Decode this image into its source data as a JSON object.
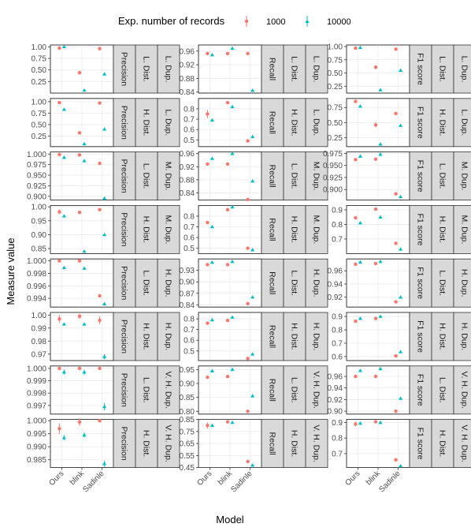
{
  "chart_data": {
    "type": "scatter",
    "title": "",
    "xlabel": "Model",
    "ylabel": "Measure value",
    "legend": {
      "title": "Exp. number of records",
      "placement": "top",
      "entries": [
        {
          "name": "1000",
          "color": "#F8766D",
          "marker": "circle"
        },
        {
          "name": "10000",
          "color": "#00BFC4",
          "marker": "triangle"
        }
      ]
    },
    "categories": [
      "Ours",
      "blink",
      "Sadinle"
    ],
    "grid": true,
    "facets": [
      {
        "metric": "Precision",
        "dist": "L. Dist.",
        "dup": "L. Dup.",
        "ylim": [
          0.0,
          1.04
        ],
        "yticks": [
          "1.00",
          "0.75",
          "0.50",
          "0.25"
        ],
        "series": [
          {
            "name": "1000",
            "values": [
              0.97,
              0.44,
              0.96
            ],
            "err": [
              0.01,
              0.04,
              0.03
            ]
          },
          {
            "name": "10000",
            "values": [
              1.0,
              0.06,
              0.41
            ],
            "err": [
              0.01,
              0.0,
              0.0
            ]
          }
        ]
      },
      {
        "metric": "Recall",
        "dist": "L. Dist.",
        "dup": "L. Dup.",
        "ylim": [
          0.837,
          0.978
        ],
        "yticks": [
          "0.96",
          "0.92",
          "0.88",
          "0.84"
        ],
        "series": [
          {
            "name": "1000",
            "values": [
              0.953,
              0.953,
              0.953
            ],
            "err": [
              0.002,
              0.001,
              0.0
            ]
          },
          {
            "name": "10000",
            "values": [
              0.949,
              0.968,
              0.845
            ],
            "err": [
              0.004,
              0.0,
              0.0
            ]
          }
        ]
      },
      {
        "metric": "F1 score",
        "dist": "L. Dist.",
        "dup": "L. Dup.",
        "ylim": [
          0.12,
          1.03
        ],
        "yticks": [
          "1.00",
          "0.75",
          "0.50",
          "0.25"
        ],
        "series": [
          {
            "name": "1000",
            "values": [
              0.97,
              0.61,
              0.95
            ],
            "err": [
              0.01,
              0.04,
              0.0
            ]
          },
          {
            "name": "10000",
            "values": [
              0.98,
              0.18,
              0.55
            ],
            "err": [
              0.0,
              0.0,
              0.0
            ]
          }
        ]
      },
      {
        "metric": "Precision",
        "dist": "H. Dist.",
        "dup": "L. Dup.",
        "ylim": [
          0.02,
          1.07
        ],
        "yticks": [
          "1.00",
          "0.75",
          "0.50",
          "0.25"
        ],
        "series": [
          {
            "name": "1000",
            "values": [
              0.98,
              0.32,
              0.97
            ],
            "err": [
              0.0,
              0.0,
              0.0
            ]
          },
          {
            "name": "10000",
            "values": [
              0.83,
              0.08,
              0.4
            ],
            "err": [
              0.0,
              0.0,
              0.0
            ]
          }
        ]
      },
      {
        "metric": "Recall",
        "dist": "H. Dist.",
        "dup": "L. Dup.",
        "ylim": [
          0.435,
          0.9
        ],
        "yticks": [
          "0.8",
          "0.7",
          "0.6",
          "0.5"
        ],
        "series": [
          {
            "name": "1000",
            "values": [
              0.75,
              0.86,
              0.49
            ],
            "err": [
              0.04,
              0.0,
              0.0
            ]
          },
          {
            "name": "10000",
            "values": [
              0.69,
              0.82,
              0.53
            ],
            "err": [
              0.0,
              0.0,
              0.0
            ]
          }
        ]
      },
      {
        "metric": "F1 score",
        "dist": "H. Dist.",
        "dup": "L. Dup.",
        "ylim": [
          0.1,
          0.9
        ],
        "yticks": [
          "0.75",
          "0.50",
          "0.25"
        ],
        "series": [
          {
            "name": "1000",
            "values": [
              0.85,
              0.46,
              0.65
            ],
            "err": [
              0.0,
              0.04,
              0.0
            ]
          },
          {
            "name": "10000",
            "values": [
              0.77,
              0.14,
              0.45
            ],
            "err": [
              0.0,
              0.0,
              0.0
            ]
          }
        ]
      },
      {
        "metric": "Precision",
        "dist": "L. Dist.",
        "dup": "M. Dup.",
        "ylim": [
          0.891,
          1.005
        ],
        "yticks": [
          "1.000",
          "0.975",
          "0.950",
          "0.925",
          "0.900"
        ],
        "series": [
          {
            "name": "1000",
            "values": [
              0.999,
              0.998,
              0.978
            ],
            "err": [
              0.0,
              0.001,
              0.004
            ]
          },
          {
            "name": "10000",
            "values": [
              0.992,
              0.984,
              0.895
            ],
            "err": [
              0.0,
              0.0,
              0.0
            ]
          }
        ]
      },
      {
        "metric": "Recall",
        "dist": "L. Dist.",
        "dup": "M. Dup.",
        "ylim": [
          0.818,
          0.965
        ],
        "yticks": [
          "0.96",
          "0.92",
          "0.88",
          "0.84"
        ],
        "series": [
          {
            "name": "1000",
            "values": [
              0.928,
              0.928,
              0.82
            ],
            "err": [
              0.004,
              0.0,
              0.0
            ]
          },
          {
            "name": "10000",
            "values": [
              0.945,
              0.96,
              0.876
            ],
            "err": [
              0.0,
              0.0,
              0.0
            ]
          }
        ]
      },
      {
        "metric": "F1 score",
        "dist": "L. Dist.",
        "dup": "M. Dup.",
        "ylim": [
          0.878,
          0.978
        ],
        "yticks": [
          "0.975",
          "0.950",
          "0.925",
          "0.900"
        ],
        "series": [
          {
            "name": "1000",
            "values": [
              0.962,
              0.963,
              0.891
            ],
            "err": [
              0.002,
              0.0,
              0.0
            ]
          },
          {
            "name": "10000",
            "values": [
              0.969,
              0.973,
              0.885
            ],
            "err": [
              0.0,
              0.0,
              0.0
            ]
          }
        ]
      },
      {
        "metric": "Precision",
        "dist": "H. Dist.",
        "dup": "M. Dup.",
        "ylim": [
          0.832,
          1.005
        ],
        "yticks": [
          "1.00",
          "0.95",
          "0.90",
          "0.85"
        ],
        "series": [
          {
            "name": "1000",
            "values": [
              0.982,
              0.98,
              0.99
            ],
            "err": [
              0.008,
              0.006,
              0.003
            ]
          },
          {
            "name": "10000",
            "values": [
              0.967,
              0.84,
              0.9
            ],
            "err": [
              0.0,
              0.004,
              0.002
            ]
          }
        ]
      },
      {
        "metric": "Recall",
        "dist": "H. Dist.",
        "dup": "M. Dup.",
        "ylim": [
          0.45,
          0.9
        ],
        "yticks": [
          "0.8",
          "0.7",
          "0.6",
          "0.5"
        ],
        "series": [
          {
            "name": "1000",
            "values": [
              0.74,
              0.86,
              0.5
            ],
            "err": [
              0.0,
              0.0,
              0.0
            ]
          },
          {
            "name": "10000",
            "values": [
              0.7,
              0.885,
              0.485
            ],
            "err": [
              0.0,
              0.0,
              0.0
            ]
          }
        ]
      },
      {
        "metric": "F1 score",
        "dist": "H. Dist.",
        "dup": "M. Dup.",
        "ylim": [
          0.6,
          0.93
        ],
        "yticks": [
          "0.9",
          "0.8",
          "0.7"
        ],
        "series": [
          {
            "name": "1000",
            "values": [
              0.845,
              0.905,
              0.67
            ],
            "err": [
              0.0,
              0.0,
              0.0
            ]
          },
          {
            "name": "10000",
            "values": [
              0.81,
              0.85,
              0.63
            ],
            "err": [
              0.0,
              0.0,
              0.0
            ]
          }
        ]
      },
      {
        "metric": "Precision",
        "dist": "L. Dist.",
        "dup": "H. Dup.",
        "ylim": [
          0.9926,
          1.0003
        ],
        "yticks": [
          "1.000",
          "0.998",
          "0.996",
          "0.994"
        ],
        "series": [
          {
            "name": "1000",
            "values": [
              1.0,
              1.0,
              0.9944
            ],
            "err": [
              0.0,
              0.0,
              0.0
            ]
          },
          {
            "name": "10000",
            "values": [
              0.9989,
              0.9988,
              0.9931
            ],
            "err": [
              0.0,
              0.0,
              0.0
            ]
          }
        ]
      },
      {
        "metric": "Recall",
        "dist": "L. Dist.",
        "dup": "H. Dup.",
        "ylim": [
          0.834,
          0.96
        ],
        "yticks": [
          "0.93",
          "0.90",
          "0.87",
          "0.84"
        ],
        "series": [
          {
            "name": "1000",
            "values": [
              0.945,
              0.945,
              0.843
            ],
            "err": [
              0.0,
              0.0,
              0.0
            ]
          },
          {
            "name": "10000",
            "values": [
              0.951,
              0.953,
              0.86
            ],
            "err": [
              0.0,
              0.0,
              0.0
            ]
          }
        ]
      },
      {
        "metric": "F1 score",
        "dist": "L. Dist.",
        "dup": "H. Dup.",
        "ylim": [
          0.905,
          0.978
        ],
        "yticks": [
          "0.96",
          "0.94",
          "0.92"
        ],
        "series": [
          {
            "name": "1000",
            "values": [
              0.97,
              0.971,
              0.913
            ],
            "err": [
              0.0,
              0.0,
              0.0
            ]
          },
          {
            "name": "10000",
            "values": [
              0.973,
              0.974,
              0.92
            ],
            "err": [
              0.0,
              0.0,
              0.0
            ]
          }
        ]
      },
      {
        "metric": "Precision",
        "dist": "H. Dist.",
        "dup": "H. Dup.",
        "ylim": [
          0.965,
          1.002
        ],
        "yticks": [
          "1.00",
          "0.99",
          "0.98",
          "0.97"
        ],
        "series": [
          {
            "name": "1000",
            "values": [
              0.997,
              0.999,
              0.996
            ],
            "err": [
              0.003,
              0.002,
              0.003
            ]
          },
          {
            "name": "10000",
            "values": [
              0.993,
              0.993,
              0.968
            ],
            "err": [
              0.001,
              0.001,
              0.002
            ]
          }
        ]
      },
      {
        "metric": "Recall",
        "dist": "H. Dist.",
        "dup": "H. Dup.",
        "ylim": [
          0.41,
          0.86
        ],
        "yticks": [
          "0.8",
          "0.7",
          "0.6",
          "0.5"
        ],
        "series": [
          {
            "name": "1000",
            "values": [
              0.76,
              0.785,
              0.43
            ],
            "err": [
              0.0,
              0.0,
              0.0
            ]
          },
          {
            "name": "10000",
            "values": [
              0.79,
              0.815,
              0.47
            ],
            "err": [
              0.0,
              0.0,
              0.0
            ]
          }
        ]
      },
      {
        "metric": "F1 score",
        "dist": "H. Dist.",
        "dup": "H. Dup.",
        "ylim": [
          0.57,
          0.93
        ],
        "yticks": [
          "0.9",
          "0.8",
          "0.7",
          "0.6"
        ],
        "series": [
          {
            "name": "1000",
            "values": [
              0.865,
              0.885,
              0.605
            ],
            "err": [
              0.0,
              0.0,
              0.0
            ]
          },
          {
            "name": "10000",
            "values": [
              0.885,
              0.9,
              0.635
            ],
            "err": [
              0.0,
              0.0,
              0.0
            ]
          }
        ]
      },
      {
        "metric": "Precision",
        "dist": "L. Dist.",
        "dup": "V. H. Dup.",
        "ylim": [
          0.9963,
          1.0002
        ],
        "yticks": [
          "1.000",
          "0.999",
          "0.998",
          "0.997"
        ],
        "series": [
          {
            "name": "1000",
            "values": [
              1.0,
              1.0,
              1.0
            ],
            "err": [
              0.0,
              0.0,
              0.0
            ]
          },
          {
            "name": "10000",
            "values": [
              0.9997,
              0.9997,
              0.9969
            ],
            "err": [
              0.0002,
              0.0002,
              0.0003
            ]
          }
        ]
      },
      {
        "metric": "Recall",
        "dist": "L. Dist.",
        "dup": "V. H. Dup.",
        "ylim": [
          0.79,
          0.963
        ],
        "yticks": [
          "0.95",
          "0.90",
          "0.85",
          "0.80"
        ],
        "series": [
          {
            "name": "1000",
            "values": [
              0.922,
              0.925,
              0.8
            ],
            "err": [
              0.0,
              0.0,
              0.0
            ]
          },
          {
            "name": "10000",
            "values": [
              0.945,
              0.95,
              0.855
            ],
            "err": [
              0.0,
              0.0,
              0.0
            ]
          }
        ]
      },
      {
        "metric": "F1 score",
        "dist": "L. Dist.",
        "dup": "V. H. Dup.",
        "ylim": [
          0.895,
          0.978
        ],
        "yticks": [
          "0.96",
          "0.94",
          "0.92",
          "0.90"
        ],
        "series": [
          {
            "name": "1000",
            "values": [
              0.96,
              0.96,
              0.9
            ],
            "err": [
              0.0,
              0.0,
              0.0
            ]
          },
          {
            "name": "10000",
            "values": [
              0.97,
              0.973,
              0.922
            ],
            "err": [
              0.0,
              0.0,
              0.0
            ]
          }
        ]
      },
      {
        "metric": "Precision",
        "dist": "H. Dist.",
        "dup": "V. H. Dup.",
        "ylim": [
          0.982,
          1.0005
        ],
        "yticks": [
          "1.000",
          "0.995",
          "0.990",
          "0.985"
        ],
        "series": [
          {
            "name": "1000",
            "values": [
              0.997,
              0.9995,
              1.0
            ],
            "err": [
              0.002,
              0.0015,
              0.0
            ]
          },
          {
            "name": "10000",
            "values": [
              0.9935,
              0.9945,
              0.9835
            ],
            "err": [
              0.001,
              0.001,
              0.0012
            ]
          }
        ]
      },
      {
        "metric": "Recall",
        "dist": "H. Dist.",
        "dup": "V. H. Dup.",
        "ylim": [
          0.45,
          0.85
        ],
        "yticks": [
          "0.85",
          "0.75",
          "0.65",
          "0.55",
          "0.45"
        ],
        "series": [
          {
            "name": "1000",
            "values": [
              0.8,
              0.83,
              0.5
            ],
            "err": [
              0.025,
              0.0,
              0.0
            ]
          },
          {
            "name": "10000",
            "values": [
              0.8,
              0.825,
              0.47
            ],
            "err": [
              0.0,
              0.0,
              0.0
            ]
          }
        ]
      },
      {
        "metric": "F1 score",
        "dist": "H. Dist.",
        "dup": "V. H. Dup.",
        "ylim": [
          0.61,
          0.92
        ],
        "yticks": [
          "0.9",
          "0.8",
          "0.7"
        ],
        "series": [
          {
            "name": "1000",
            "values": [
              0.89,
              0.905,
              0.66
            ],
            "err": [
              0.015,
              0.0,
              0.0
            ]
          },
          {
            "name": "10000",
            "values": [
              0.895,
              0.9,
              0.62
            ],
            "err": [
              0.0,
              0.0,
              0.0
            ]
          }
        ]
      }
    ]
  }
}
